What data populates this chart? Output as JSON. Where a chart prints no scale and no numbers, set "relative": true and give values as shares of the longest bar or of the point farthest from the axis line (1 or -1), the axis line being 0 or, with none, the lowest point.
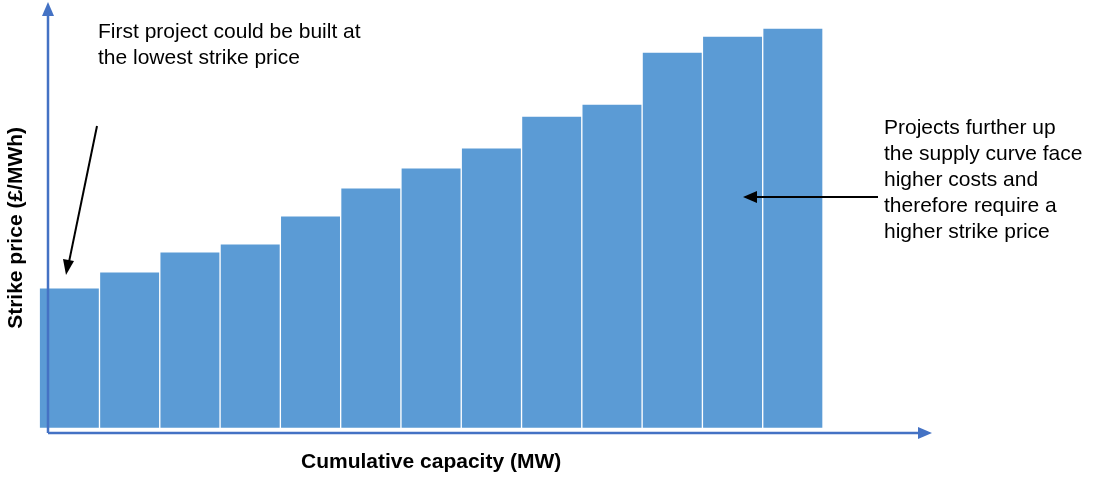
{
  "chart_data": {
    "type": "bar",
    "relative": true,
    "xlabel": "Cumulative capacity (MW)",
    "ylabel": "Strike price (£/MWh)",
    "categories": [
      null,
      null,
      null,
      null,
      null,
      null,
      null,
      null,
      null,
      null,
      null,
      null,
      null
    ],
    "values": [
      0.35,
      0.39,
      0.44,
      0.46,
      0.53,
      0.6,
      0.65,
      0.7,
      0.78,
      0.81,
      0.94,
      0.98,
      1
    ],
    "color": "#5b9bd5",
    "grid": false,
    "legend": false,
    "annotations": [
      "First project could be built at the lowest strike price",
      "Projects further up the supply curve face higher costs and therefore require a higher strike price"
    ]
  }
}
